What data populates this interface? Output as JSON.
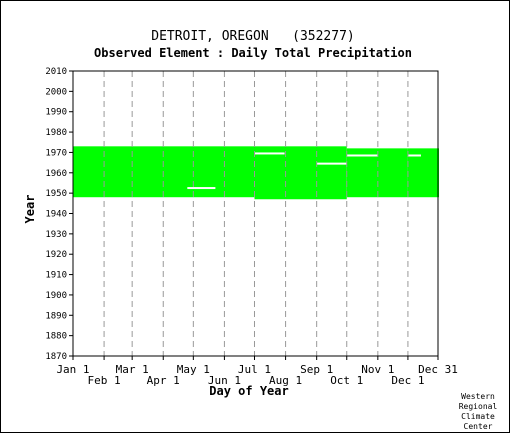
{
  "chart_data": {
    "type": "heatmap",
    "title": "DETROIT, OREGON   (352277)",
    "subtitle": "Observed Element : Daily Total Precipitation",
    "xlabel": "Day of Year",
    "ylabel": "Year",
    "xlim": [
      1,
      365
    ],
    "ylim": [
      1870,
      2010
    ],
    "y_ticks": [
      1870,
      1880,
      1890,
      1900,
      1910,
      1920,
      1930,
      1940,
      1950,
      1960,
      1970,
      1980,
      1990,
      2000,
      2010
    ],
    "x_ticks": [
      {
        "label": "Jan 1",
        "day": 1,
        "row": 1
      },
      {
        "label": "Feb 1",
        "day": 32,
        "row": 2
      },
      {
        "label": "Mar 1",
        "day": 60,
        "row": 1
      },
      {
        "label": "Apr 1",
        "day": 91,
        "row": 2
      },
      {
        "label": "May 1",
        "day": 121,
        "row": 1
      },
      {
        "label": "Jun 1",
        "day": 152,
        "row": 2
      },
      {
        "label": "Jul 1",
        "day": 182,
        "row": 1
      },
      {
        "label": "Aug 1",
        "day": 213,
        "row": 2
      },
      {
        "label": "Sep 1",
        "day": 244,
        "row": 1
      },
      {
        "label": "Oct 1",
        "day": 274,
        "row": 2
      },
      {
        "label": "Nov 1",
        "day": 305,
        "row": 1
      },
      {
        "label": "Dec 1",
        "day": 335,
        "row": 2
      },
      {
        "label": "Dec 31",
        "day": 365,
        "row": 1
      }
    ],
    "grid": true,
    "data_color": "#00ff00",
    "missing_color": "#ffffff",
    "coverage": [
      {
        "day_start": 1,
        "day_end": 181,
        "year_start": 1948,
        "year_end": 1972
      },
      {
        "day_start": 182,
        "day_end": 273,
        "year_start": 1947,
        "year_end": 1972
      },
      {
        "day_start": 274,
        "day_end": 334,
        "year_start": 1948,
        "year_end": 1971
      },
      {
        "day_start": 335,
        "day_end": 365,
        "year_start": 1948,
        "year_end": 1971
      }
    ],
    "missing": [
      {
        "day_start": 115,
        "day_end": 142,
        "year": 1952
      },
      {
        "day_start": 182,
        "day_end": 211,
        "year": 1969
      },
      {
        "day_start": 244,
        "day_end": 273,
        "year": 1964
      },
      {
        "day_start": 274,
        "day_end": 304,
        "year": 1968
      },
      {
        "day_start": 335,
        "day_end": 347,
        "year": 1968
      }
    ]
  },
  "credit": [
    "Western",
    "Regional",
    "Climate",
    "Center"
  ]
}
